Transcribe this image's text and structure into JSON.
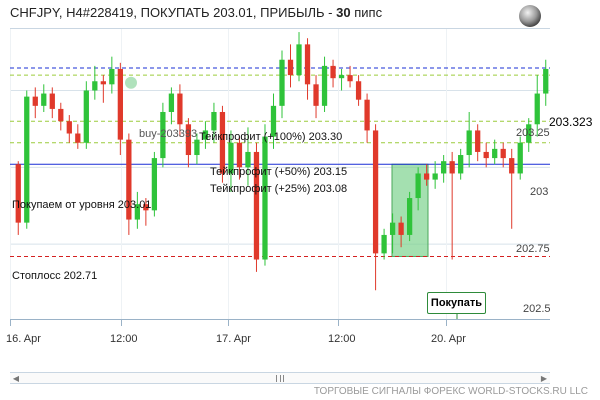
{
  "title": {
    "pair": "CHFJPY",
    "timeframe_order": "H4#228419",
    "action_price": "ПОКУПАТЬ 203.01",
    "profit_label": "ПРИБЫЛЬ -",
    "profit_value": "30",
    "profit_unit": "пипс"
  },
  "price_labels": {
    "current": "203.323",
    "p203_25": "203.25",
    "p203": "203",
    "p202_75": "202.75",
    "p202_5": "202.5"
  },
  "annotations": {
    "buy_marker": "buy-203393",
    "tp100": "Тейкпрофит (+100%) 203.30",
    "tp50": "Тейкпрофит (+50%) 203.15",
    "tp25": "Тейкпрофит (+25%) 203.08",
    "entry": "Покупаем от уровня 203.01",
    "stoploss": "Стоплосс 202.71"
  },
  "buy_button": "Покупать",
  "x_axis": [
    "16. Apr",
    "12:00",
    "17. Apr",
    "12:00",
    "20. Apr"
  ],
  "footer": "ТОРГОВЫЕ СИГНАЛЫ ФОРЕКС WORLD-STOCKS.RU LLC",
  "colors": {
    "bull": "#2fc33a",
    "bear": "#e0392b",
    "tp_lines": "#9ccc3b",
    "entry_line": "#1a2fd6",
    "stop_line": "#d42020",
    "top_line": "#1a2fd6",
    "zone_fill": "#7ed38e"
  },
  "chart_data": {
    "type": "candlestick",
    "ylim": [
      202.5,
      203.45
    ],
    "levels": {
      "take_profit_100": 203.3,
      "take_profit_50": 203.15,
      "take_profit_25": 203.08,
      "entry": 203.01,
      "stop_loss": 202.71,
      "current": 203.323
    },
    "candles": [
      [
        203.01,
        202.82,
        202.78,
        203.02
      ],
      [
        202.82,
        203.23,
        202.8,
        203.25
      ],
      [
        203.23,
        203.2,
        203.16,
        203.26
      ],
      [
        203.2,
        203.24,
        203.18,
        203.27
      ],
      [
        203.24,
        203.19,
        203.16,
        203.26
      ],
      [
        203.19,
        203.15,
        203.12,
        203.21
      ],
      [
        203.15,
        203.11,
        203.08,
        203.17
      ],
      [
        203.11,
        203.08,
        203.06,
        203.14
      ],
      [
        203.08,
        203.25,
        203.06,
        203.28
      ],
      [
        203.25,
        203.28,
        203.22,
        203.33
      ],
      [
        203.28,
        203.27,
        203.21,
        203.3
      ],
      [
        203.27,
        203.32,
        203.24,
        203.36
      ],
      [
        203.32,
        203.09,
        203.04,
        203.34
      ],
      [
        203.09,
        202.83,
        202.78,
        203.11
      ],
      [
        202.83,
        202.88,
        202.8,
        202.92
      ],
      [
        202.88,
        202.86,
        202.81,
        202.9
      ],
      [
        202.86,
        203.03,
        202.84,
        203.05
      ],
      [
        203.03,
        203.18,
        203.0,
        203.21
      ],
      [
        203.18,
        203.24,
        203.14,
        203.26
      ],
      [
        203.24,
        203.14,
        203.1,
        203.27
      ],
      [
        203.14,
        203.04,
        203.0,
        203.16
      ],
      [
        203.04,
        203.09,
        203.01,
        203.11
      ],
      [
        203.09,
        203.12,
        203.06,
        203.15
      ],
      [
        203.12,
        203.18,
        203.08,
        203.21
      ],
      [
        203.18,
        202.98,
        202.95,
        203.2
      ],
      [
        202.98,
        203.08,
        202.92,
        203.12
      ],
      [
        203.08,
        203.0,
        202.96,
        203.1
      ],
      [
        203.0,
        203.05,
        202.94,
        203.13
      ],
      [
        203.05,
        202.7,
        202.66,
        203.08
      ],
      [
        202.7,
        203.1,
        202.68,
        203.14
      ],
      [
        203.1,
        203.2,
        203.06,
        203.24
      ],
      [
        203.2,
        203.35,
        203.16,
        203.38
      ],
      [
        203.35,
        203.3,
        203.26,
        203.4
      ],
      [
        203.3,
        203.4,
        203.28,
        203.44
      ],
      [
        203.4,
        203.27,
        203.22,
        203.42
      ],
      [
        203.27,
        203.2,
        203.16,
        203.3
      ],
      [
        203.2,
        203.33,
        203.18,
        203.36
      ],
      [
        203.33,
        203.29,
        203.26,
        203.35
      ],
      [
        203.29,
        203.3,
        203.25,
        203.32
      ],
      [
        203.3,
        203.28,
        203.26,
        203.33
      ],
      [
        203.28,
        203.22,
        203.2,
        203.3
      ],
      [
        203.22,
        203.12,
        203.08,
        203.24
      ],
      [
        203.12,
        202.72,
        202.6,
        203.14
      ],
      [
        202.72,
        202.78,
        202.7,
        202.8
      ],
      [
        202.78,
        202.82,
        202.72,
        202.85
      ],
      [
        202.82,
        202.78,
        202.74,
        202.84
      ],
      [
        202.78,
        202.9,
        202.76,
        202.92
      ],
      [
        202.9,
        202.98,
        202.86,
        203.0
      ],
      [
        202.98,
        202.96,
        202.94,
        203.01
      ],
      [
        202.96,
        202.98,
        202.93,
        203.02
      ],
      [
        202.98,
        203.02,
        202.95,
        203.04
      ],
      [
        203.02,
        202.98,
        202.7,
        203.05
      ],
      [
        202.98,
        203.04,
        202.96,
        203.06
      ],
      [
        203.04,
        203.12,
        203.0,
        203.18
      ],
      [
        203.12,
        203.05,
        203.02,
        203.14
      ],
      [
        203.05,
        203.03,
        203.0,
        203.08
      ],
      [
        203.03,
        203.06,
        203.01,
        203.09
      ],
      [
        203.06,
        203.03,
        203.0,
        203.08
      ],
      [
        203.03,
        202.98,
        202.8,
        203.06
      ],
      [
        202.98,
        203.08,
        202.96,
        203.1
      ],
      [
        203.08,
        203.14,
        203.05,
        203.16
      ],
      [
        203.14,
        203.24,
        203.1,
        203.3
      ],
      [
        203.24,
        203.32,
        203.2,
        203.35
      ]
    ]
  }
}
